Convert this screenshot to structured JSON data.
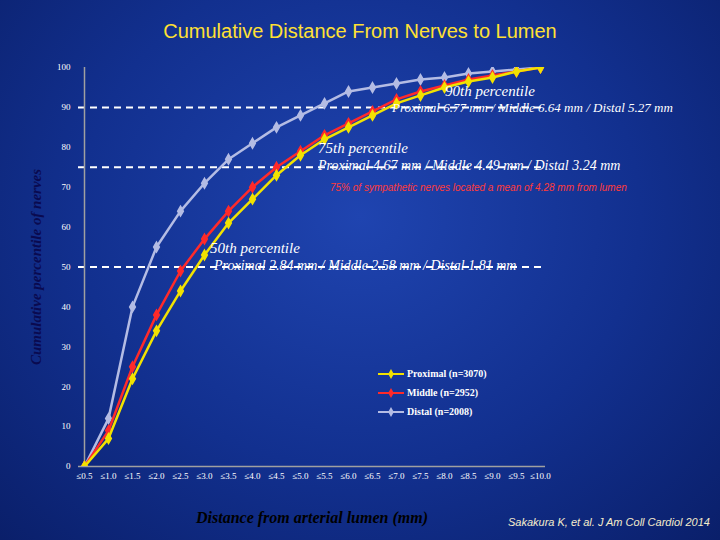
{
  "chart_data": {
    "type": "line",
    "title": "Cumulative Distance From Nerves to Lumen",
    "x_label": "Distance from arterial lumen (mm)",
    "y_label": "Cumulative percentile of nerves",
    "categories": [
      "≤0.5",
      "≤1.0",
      "≤1.5",
      "≤2.0",
      "≤2.5",
      "≤3.0",
      "≤3.5",
      "≤4.0",
      "≤4.5",
      "≤5.0",
      "≤5.5",
      "≤6.0",
      "≤6.5",
      "≤7.0",
      "≤7.5",
      "≤8.0",
      "≤8.5",
      "≤9.0",
      "≤9.5",
      "≤10.0"
    ],
    "series": [
      {
        "name": "Proximal (n=3070)",
        "color": "#f2e200",
        "marker": "diamond",
        "line_style": "solid",
        "values": [
          0,
          7,
          22,
          34,
          44,
          53,
          61,
          67,
          73,
          78,
          82,
          85,
          88,
          91,
          93,
          95,
          96.5,
          97.5,
          99,
          100
        ]
      },
      {
        "name": "Middle (n=2952)",
        "color": "#ff2a2a",
        "marker": "diamond",
        "line_style": "solid",
        "values": [
          0,
          9,
          25,
          38,
          49,
          57,
          64,
          70,
          75,
          79,
          83,
          86,
          89,
          92,
          94,
          95.5,
          97,
          98,
          99,
          100
        ]
      },
      {
        "name": "Distal (n=2008)",
        "color": "#b4bce4",
        "marker": "diamond",
        "line_style": "solid",
        "values": [
          0,
          12,
          40,
          55,
          64,
          71,
          77,
          81,
          85,
          88,
          91,
          94,
          95,
          96,
          97,
          97.5,
          98.5,
          99,
          99.5,
          100
        ]
      }
    ],
    "ylim": [
      0,
      100
    ],
    "yticks": [
      0,
      10,
      20,
      30,
      40,
      50,
      60,
      70,
      80,
      90,
      100
    ],
    "legend": "lower right",
    "annotations": [
      {
        "y": 90,
        "lines": [
          "90th percentile",
          "Proximal 6.77 mm / Middle 6.64 mm / Distal 5.27 mm"
        ]
      },
      {
        "y": 75,
        "lines": [
          "75th percentile",
          "Proximal 4.67 mm / Middle 4.49 mm / Distal 3.24 mm"
        ]
      },
      {
        "y": 50,
        "lines": [
          "50th percentile",
          "Proximal 2.84 mm / Middle 2.58 mm / Distal 1.81 mm"
        ]
      }
    ],
    "note": {
      "text": "75% of sympathetic nerves located a mean of 4.28 mm from lumen",
      "color": "#ff3a3a"
    },
    "source": "Sakakura K, et al. J Am Coll Cardiol 2014"
  }
}
